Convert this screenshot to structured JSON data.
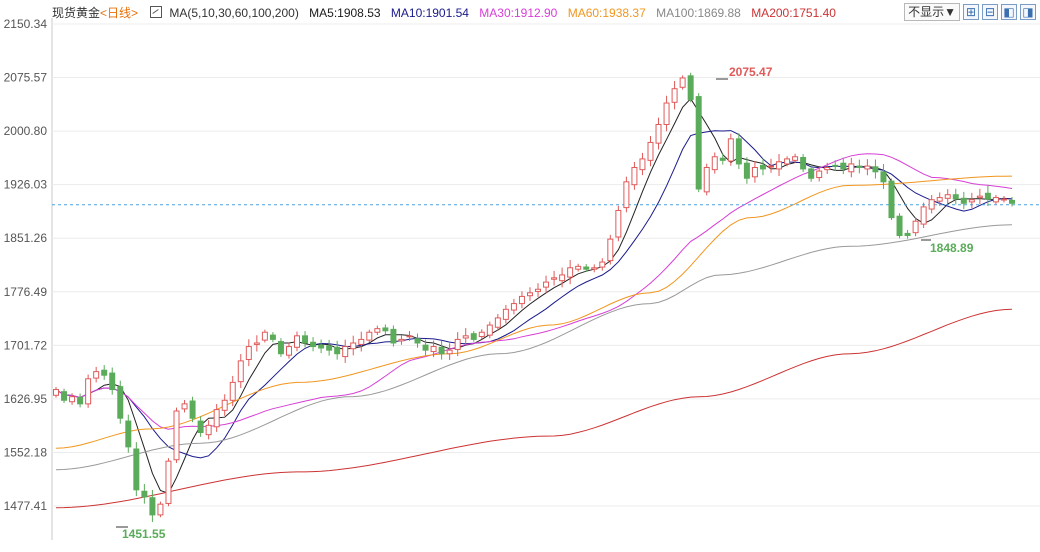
{
  "legend": {
    "instrument": "现货黄金",
    "period": "<日线>",
    "ma_params": "MA(5,10,30,60,100,200)",
    "ma5": "MA5:1908.53",
    "ma10": "MA10:1901.54",
    "ma30": "MA30:1912.90",
    "ma60": "MA60:1938.37",
    "ma100": "MA100:1869.88",
    "ma200": "MA200:1751.40"
  },
  "toolbar": {
    "display_select": "不显示▼",
    "zoom_in_icon": "⊞",
    "zoom_out_icon": "⊟",
    "prev_icon": "◧",
    "next_icon": "◨"
  },
  "colors": {
    "up": "#e05a5a",
    "down": "#5aab5a",
    "ma5": "#222222",
    "ma10": "#1a1a8c",
    "ma30": "#d63fd6",
    "ma60": "#f0961e",
    "ma100": "#999999",
    "ma200": "#cc3333",
    "current_line": "#4aa3df"
  },
  "chart_data": {
    "type": "candlestick",
    "y_ticks": [
      "2150.34",
      "2075.57",
      "2000.80",
      "1926.03",
      "1851.26",
      "1776.49",
      "1701.72",
      "1626.95",
      "1552.18",
      "1477.41"
    ],
    "ylim": [
      1440,
      2160
    ],
    "current_price_line": 1898,
    "annotations": {
      "high": "2075.47",
      "low": "1451.55",
      "recent_low": "1848.89"
    },
    "close": [
      1640,
      1625,
      1630,
      1620,
      1655,
      1665,
      1660,
      1640,
      1600,
      1560,
      1500,
      1490,
      1465,
      1480,
      1540,
      1610,
      1620,
      1600,
      1580,
      1590,
      1612,
      1625,
      1650,
      1680,
      1700,
      1705,
      1720,
      1710,
      1690,
      1700,
      1715,
      1705,
      1700,
      1698,
      1695,
      1690,
      1700,
      1705,
      1710,
      1720,
      1725,
      1722,
      1705,
      1710,
      1715,
      1705,
      1695,
      1700,
      1690,
      1695,
      1710,
      1715,
      1710,
      1720,
      1730,
      1740,
      1752,
      1760,
      1770,
      1775,
      1780,
      1790,
      1796,
      1800,
      1810,
      1812,
      1808,
      1810,
      1818,
      1850,
      1890,
      1930,
      1950,
      1962,
      1985,
      2010,
      2040,
      2060,
      2075,
      2045,
      1920,
      1950,
      1965,
      1960,
      1990,
      1955,
      1935,
      1950,
      1948,
      1952,
      1958,
      1962,
      1965,
      1948,
      1935,
      1945,
      1950,
      1952,
      1948,
      1955,
      1950,
      1952,
      1944,
      1930,
      1880,
      1855,
      1855,
      1875,
      1895,
      1905,
      1908,
      1912,
      1906,
      1900,
      1905,
      1910,
      1906,
      1908,
      1906,
      1900
    ]
  }
}
